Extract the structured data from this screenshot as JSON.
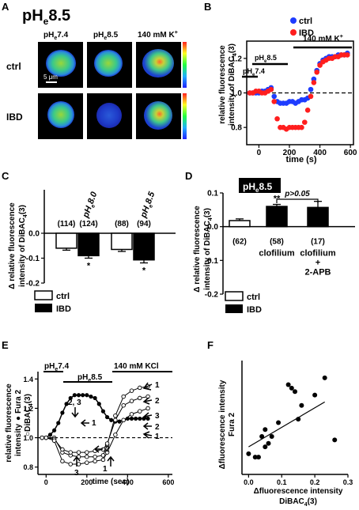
{
  "panel_letters": {
    "A": "A",
    "B": "B",
    "C": "C",
    "D": "D",
    "E": "E",
    "F": "F"
  },
  "panelA": {
    "title_main": "pH",
    "title_sub": "e",
    "title_val": "8.5",
    "cols": [
      {
        "main": "pH",
        "sub": "e",
        "val": "7.4"
      },
      {
        "main": "pH",
        "sub": "e",
        "val": "8.5"
      },
      {
        "main": "140 mM K",
        "sub": "",
        "val": "+"
      }
    ],
    "rows": [
      "ctrl",
      "IBD"
    ],
    "scalebar": "5 μm"
  },
  "chart_data": [
    {
      "panel": "B",
      "type": "scatter",
      "ylabel_line1": "relative fluorescence",
      "ylabel_line2": "intensity of DiBAC",
      "ylabel_sub": "4",
      "ylabel_end": "(3)",
      "xlabel": "time (s)",
      "xlim": [
        -80,
        620
      ],
      "ylim": [
        0.7,
        1.3
      ],
      "xticks": [
        "0",
        "200",
        "400",
        "600"
      ],
      "yticks": [
        "0.8",
        "1.0",
        "1.2"
      ],
      "legend": [
        "ctrl",
        "IBD"
      ],
      "colors": {
        "ctrl": "#1e3cff",
        "IBD": "#ff1e1e"
      },
      "annotations": [
        {
          "main": "pH",
          "sub": "e",
          "val": "7.4"
        },
        {
          "main": "pH",
          "sub": "e",
          "val": "8.5"
        },
        {
          "main": "140 mM K",
          "sub": "",
          "val": "+"
        }
      ],
      "series": [
        {
          "name": "ctrl",
          "x": [
            -60,
            -40,
            -20,
            0,
            20,
            40,
            60,
            80,
            100,
            120,
            140,
            160,
            180,
            200,
            220,
            240,
            260,
            280,
            300,
            320,
            340,
            360,
            380,
            400,
            420,
            440,
            460,
            480,
            500,
            520,
            540,
            560,
            580
          ],
          "y": [
            1.0,
            1.0,
            1.0,
            1.0,
            1.01,
            1.01,
            1.02,
            1.03,
            0.98,
            0.95,
            0.94,
            0.94,
            0.94,
            0.95,
            0.95,
            0.94,
            0.95,
            0.96,
            0.96,
            0.97,
            1.02,
            1.08,
            1.13,
            1.17,
            1.19,
            1.2,
            1.21,
            1.21,
            1.21,
            1.22,
            1.22,
            1.22,
            1.23
          ]
        },
        {
          "name": "IBD",
          "x": [
            -60,
            -40,
            -20,
            0,
            20,
            40,
            60,
            80,
            100,
            120,
            140,
            160,
            180,
            200,
            220,
            240,
            260,
            280,
            300,
            320,
            340,
            360,
            380,
            400,
            420,
            440,
            460,
            480,
            500,
            520,
            540,
            560,
            580
          ],
          "y": [
            1.0,
            1.0,
            1.01,
            1.01,
            1.0,
            1.0,
            1.01,
            1.02,
            0.95,
            0.85,
            0.8,
            0.8,
            0.79,
            0.8,
            0.8,
            0.8,
            0.8,
            0.8,
            0.83,
            0.9,
            0.98,
            1.06,
            1.12,
            1.16,
            1.18,
            1.19,
            1.2,
            1.2,
            1.21,
            1.21,
            1.22,
            1.22,
            1.22
          ]
        }
      ]
    },
    {
      "panel": "C",
      "type": "bar",
      "ylabel_line1": "Δ relative fluorescence",
      "ylabel_line2": "intensity of DiBAC",
      "ylabel_sub": "4",
      "ylabel_end": "(3)",
      "ylim": [
        -0.2,
        0.0
      ],
      "yticks": [
        "0.0",
        "-0.1",
        "-0.2"
      ],
      "groups": [
        {
          "main": "pH",
          "sub": "e",
          "val": "8.0"
        },
        {
          "main": "pH",
          "sub": "e",
          "val": "8.5"
        }
      ],
      "legend": [
        "ctrl",
        "IBD"
      ],
      "series": [
        {
          "name": "ctrl",
          "values": [
            -0.06,
            -0.065
          ],
          "errors": [
            0.008,
            0.008
          ],
          "n": [
            "(114)",
            "(88)"
          ]
        },
        {
          "name": "IBD",
          "values": [
            -0.09,
            -0.107
          ],
          "errors": [
            0.01,
            0.012
          ],
          "n": [
            "(124)",
            "(94)"
          ]
        }
      ],
      "significance": [
        "*",
        "*"
      ]
    },
    {
      "panel": "D",
      "type": "bar",
      "title": "pHe8.5",
      "title_main": "pH",
      "title_sub": "e",
      "title_val": "8.5",
      "ylabel_line1": "Δ relative fluorescence",
      "ylabel_line2": "intensity of DiBAC",
      "ylabel_sub": "4",
      "ylabel_end": "(3)",
      "ylim": [
        -0.2,
        0.1
      ],
      "yticks": [
        "0.1",
        "0.0",
        "-0.1",
        "-0.2"
      ],
      "categories": [
        "",
        "clofilium",
        "clofilium + 2-APB"
      ],
      "category_lines": [
        [
          ""
        ],
        [
          "clofilium"
        ],
        [
          "clofilium",
          "+",
          "2-APB"
        ]
      ],
      "values": [
        0.018,
        0.06,
        0.057
      ],
      "errors": [
        0.005,
        0.006,
        0.018
      ],
      "fills": [
        "ctrl",
        "IBD",
        "IBD"
      ],
      "n": [
        "(62)",
        "(58)",
        "(17)"
      ],
      "annotations": {
        "sig": "**",
        "p": "p>0.05"
      },
      "legend": [
        "ctrl",
        "IBD"
      ]
    },
    {
      "panel": "E",
      "type": "line",
      "ylabel_line1": "relative fluorescence",
      "ylabel_line2": "intensity",
      "ylabel_line3": "DiBAC",
      "ylabel_sub": "4",
      "ylabel_end": "(3)",
      "legend_filled": "Fura 2",
      "legend_open_prefix": "○",
      "xlabel": "time (sec)",
      "xlim": [
        -40,
        620
      ],
      "ylim": [
        0.75,
        1.45
      ],
      "xticks": [
        "0",
        "200",
        "400",
        "600"
      ],
      "yticks": [
        "0.8",
        "1.0",
        "1.2",
        "1.4"
      ],
      "bars": [
        {
          "main": "pH",
          "sub": "e",
          "val": "7.4"
        },
        {
          "main": "pH",
          "sub": "e",
          "val": "8.5"
        },
        {
          "main": "140 mM KCl",
          "sub": "",
          "val": ""
        }
      ],
      "labels": {
        "arrow_23": "2, 3",
        "arrow_1": "1",
        "arrow_2": "2",
        "arrow_3": "3",
        "arrow_1b": "1",
        "right": [
          "1",
          "2",
          "3",
          "2",
          "1"
        ]
      },
      "series": [
        {
          "name": "Fura 2 (filled)",
          "x": [
            -20,
            0,
            20,
            40,
            60,
            80,
            100,
            120,
            140,
            160,
            180,
            200,
            220,
            240,
            260,
            280,
            300,
            320,
            340,
            360,
            380,
            400,
            420,
            440,
            460,
            480,
            500
          ],
          "y": [
            1.0,
            1.0,
            1.02,
            1.05,
            1.1,
            1.17,
            1.23,
            1.27,
            1.29,
            1.29,
            1.29,
            1.29,
            1.28,
            1.27,
            1.23,
            1.18,
            1.14,
            1.12,
            1.11,
            1.11,
            1.12,
            1.13,
            1.13,
            1.13,
            1.13,
            1.13,
            1.13
          ]
        },
        {
          "name": "DiBAC4(3) 1",
          "x": [
            -20,
            0,
            40,
            80,
            120,
            160,
            200,
            240,
            280,
            300,
            340,
            380,
            420,
            460,
            500
          ],
          "y": [
            1.0,
            1.0,
            1.0,
            0.9,
            0.88,
            0.87,
            0.87,
            0.87,
            0.88,
            0.95,
            1.15,
            1.28,
            1.32,
            1.34,
            1.35
          ]
        },
        {
          "name": "DiBAC4(3) 2",
          "x": [
            -20,
            0,
            40,
            80,
            120,
            160,
            200,
            240,
            280,
            300,
            340,
            380,
            420,
            460,
            500
          ],
          "y": [
            1.0,
            1.0,
            0.99,
            0.92,
            0.9,
            0.9,
            0.9,
            0.91,
            0.92,
            0.96,
            1.12,
            1.22,
            1.25,
            1.27,
            1.28
          ]
        },
        {
          "name": "DiBAC4(3) 3",
          "x": [
            -20,
            0,
            40,
            80,
            120,
            160,
            200,
            240,
            280,
            300,
            340,
            380,
            420,
            460,
            500
          ],
          "y": [
            1.0,
            1.0,
            0.98,
            0.84,
            0.82,
            0.82,
            0.83,
            0.84,
            0.85,
            0.9,
            1.02,
            1.12,
            1.16,
            1.18,
            1.2
          ]
        }
      ]
    },
    {
      "panel": "F",
      "type": "scatter",
      "ylabel_line1": "Δfluorescence intensity",
      "ylabel_line2": "Fura 2",
      "xlabel_line1": "Δfluorescence intensity",
      "xlabel_line2": "DiBAC",
      "xlabel_sub": "4",
      "xlabel_end": "(3)",
      "xlim": [
        -0.02,
        0.3
      ],
      "ylim": [
        0.0,
        0.33
      ],
      "xticks": [
        "0.0",
        "0.1",
        "0.2",
        "0.3"
      ],
      "x": [
        0.0,
        0.02,
        0.03,
        0.04,
        0.05,
        0.05,
        0.06,
        0.07,
        0.09,
        0.12,
        0.13,
        0.14,
        0.15,
        0.16,
        0.2,
        0.23,
        0.26
      ],
      "y": [
        0.06,
        0.05,
        0.05,
        0.11,
        0.13,
        0.08,
        0.09,
        0.11,
        0.15,
        0.26,
        0.25,
        0.24,
        0.16,
        0.2,
        0.23,
        0.28,
        0.1
      ],
      "fit": {
        "x": [
          0.0,
          0.23
        ],
        "y": [
          0.08,
          0.21
        ]
      }
    }
  ]
}
